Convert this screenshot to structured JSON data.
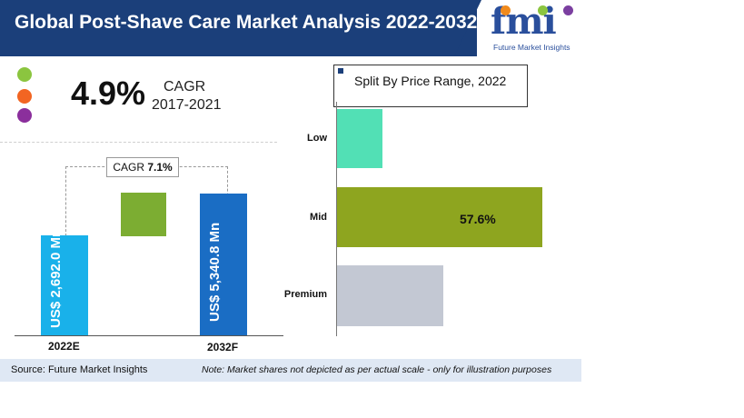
{
  "header": {
    "title": "Global Post-Shave Care Market Analysis 2022-2032"
  },
  "logo": {
    "word": "fmi",
    "tagline": "Future Market Insights",
    "dot_colors": [
      "#f08a1c",
      "#8bc53f",
      "#7b3fa0"
    ]
  },
  "legend_dots": [
    "#8bc53f",
    "#f26522",
    "#8b2f9c"
  ],
  "cagr": {
    "value": "4.9%",
    "label": "CAGR",
    "period": "2017-2021"
  },
  "chart_data": [
    {
      "type": "bar",
      "categories": [
        "2022E",
        "2032F"
      ],
      "series": [
        {
          "values": [
            2692.0,
            5340.8
          ]
        }
      ],
      "data_labels": [
        "US$ 2,692.0 Mn",
        "US$ 5,340.8 Mn"
      ],
      "annotation": {
        "label": "CAGR",
        "value": "7.1%"
      },
      "colors": [
        "#19b1ea",
        "#7cad32",
        "#1a6dc4"
      ]
    },
    {
      "type": "bar",
      "orientation": "horizontal",
      "title": "Split By Price Range, 2022",
      "categories": [
        "Low",
        "Mid",
        "Premium"
      ],
      "values": [
        12.7,
        57.6,
        29.7
      ],
      "data_labels": [
        "",
        "57.6%",
        ""
      ],
      "colors": [
        "#52e0b5",
        "#8ea51f",
        "#c3c8d3"
      ]
    }
  ],
  "footer": {
    "source": "Source: Future Market Insights",
    "note": "Note: Market shares not depicted as per actual scale - only for illustration purposes"
  }
}
